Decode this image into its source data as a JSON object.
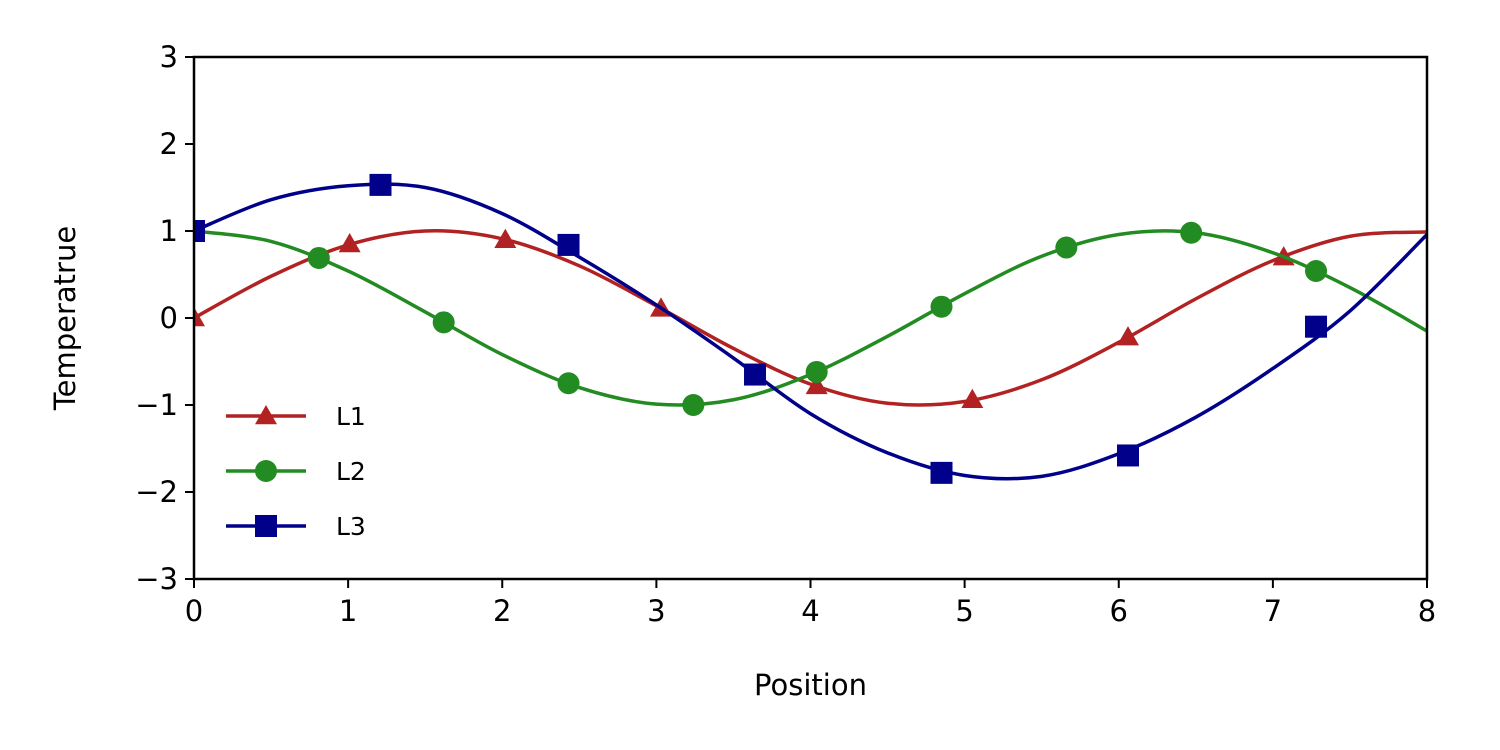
{
  "chart_data": {
    "type": "line",
    "title": "",
    "xlabel": "Position",
    "ylabel": "Temperatrue",
    "xlim": [
      0,
      8
    ],
    "ylim": [
      -3,
      3
    ],
    "xticks": [
      0,
      1,
      2,
      3,
      4,
      5,
      6,
      7,
      8
    ],
    "yticks": [
      -3,
      -2,
      -1,
      0,
      1,
      2,
      3
    ],
    "ytick_labels": [
      "−3",
      "−2",
      "−1",
      "0",
      "1",
      "2",
      "3"
    ],
    "grid": false,
    "legend_position": "lower-left",
    "series": [
      {
        "name": "L1",
        "color": "#b22222",
        "marker": "triangle",
        "x": [
          0.0,
          0.5,
          1.0,
          1.5,
          2.0,
          2.5,
          3.0,
          3.5,
          4.0,
          4.5,
          5.0,
          5.5,
          6.0,
          6.5,
          7.0,
          7.5,
          8.0
        ],
        "y": [
          0.0,
          0.48,
          0.84,
          1.0,
          0.91,
          0.6,
          0.14,
          -0.35,
          -0.76,
          -0.98,
          -0.96,
          -0.71,
          -0.28,
          0.22,
          0.66,
          0.94,
          0.99
        ],
        "marker_x": [
          0.0,
          1.01,
          2.02,
          3.03,
          4.04,
          5.05,
          6.06,
          7.07
        ],
        "marker_y": [
          0.0,
          0.85,
          0.9,
          0.11,
          -0.78,
          -0.94,
          -0.22,
          0.7
        ]
      },
      {
        "name": "L2",
        "color": "#228b22",
        "marker": "circle",
        "x": [
          0.0,
          0.5,
          1.0,
          1.5,
          2.0,
          2.5,
          3.0,
          3.5,
          4.0,
          4.5,
          5.0,
          5.5,
          6.0,
          6.5,
          7.0,
          7.5,
          8.0
        ],
        "y": [
          1.0,
          0.88,
          0.54,
          0.07,
          -0.42,
          -0.8,
          -0.99,
          -0.94,
          -0.65,
          -0.21,
          0.28,
          0.71,
          0.96,
          0.98,
          0.75,
          0.35,
          -0.15
        ],
        "marker_x": [
          0.0,
          0.81,
          1.62,
          2.43,
          3.24,
          4.04,
          4.85,
          5.66,
          6.47,
          7.28
        ],
        "marker_y": [
          1.0,
          0.69,
          -0.05,
          -0.75,
          -1.0,
          -0.62,
          0.13,
          0.81,
          0.98,
          0.54
        ]
      },
      {
        "name": "L3",
        "color": "#00008b",
        "marker": "square",
        "x": [
          0.0,
          0.5,
          1.0,
          1.5,
          2.0,
          2.5,
          3.0,
          3.5,
          4.0,
          4.5,
          5.0,
          5.5,
          6.0,
          6.5,
          7.0,
          7.5,
          8.0
        ],
        "y": [
          1.0,
          1.36,
          1.52,
          1.5,
          1.2,
          0.7,
          0.15,
          -0.46,
          -1.1,
          -1.55,
          -1.81,
          -1.82,
          -1.56,
          -1.14,
          -0.58,
          0.08,
          0.96
        ],
        "marker_x": [
          0.0,
          1.21,
          2.43,
          3.64,
          4.85,
          6.06,
          7.28
        ],
        "marker_y": [
          1.0,
          1.53,
          0.84,
          -0.65,
          -1.78,
          -1.58,
          -0.1
        ]
      }
    ]
  }
}
